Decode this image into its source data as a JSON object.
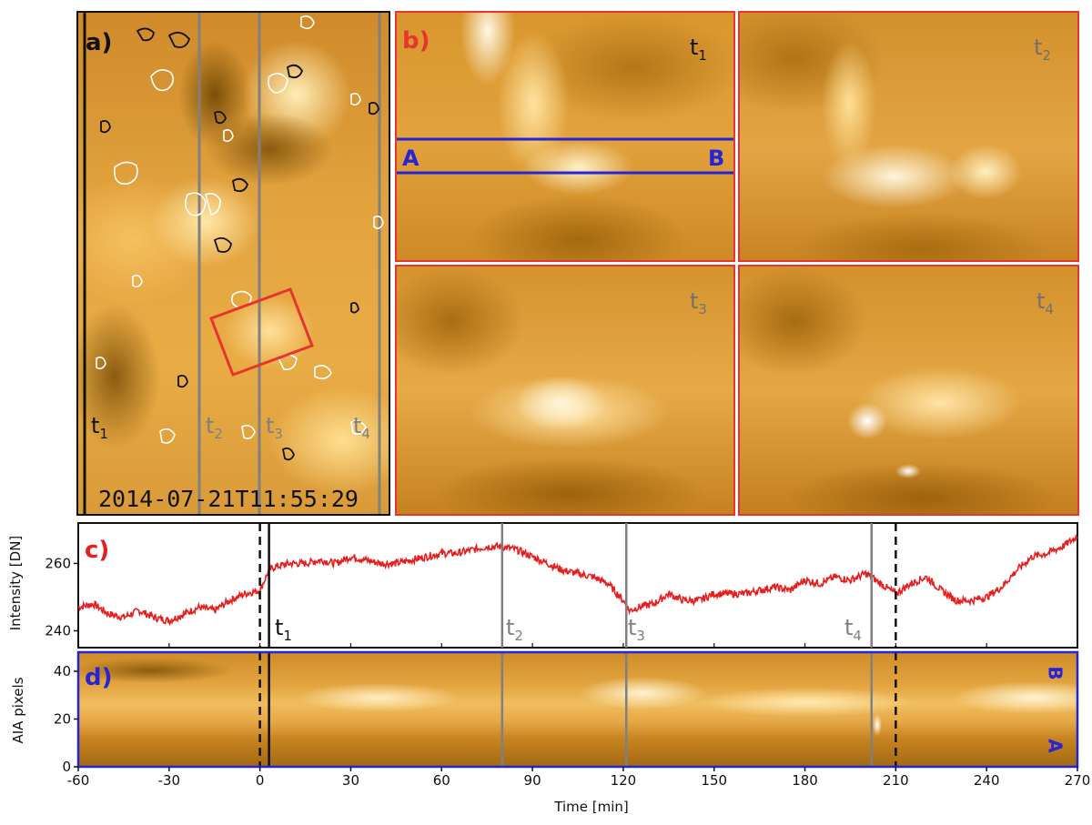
{
  "colors": {
    "aia_bright": "#fff6dc",
    "aia_mid": "#e9a33a",
    "aia_dark": "#6b4608",
    "panel_b_border": "#e8342e",
    "panel_d_border": "#2424d8",
    "curve": "#e81e1e",
    "marker_black": "#111111",
    "marker_gray": "#808080"
  },
  "panel_a": {
    "label": "a)",
    "timestamp": "2014-07-21T11:55:29",
    "time_labels": [
      {
        "base": "t",
        "sub": "1",
        "color": "#111111"
      },
      {
        "base": "t",
        "sub": "2",
        "color": "#808080"
      },
      {
        "base": "t",
        "sub": "3",
        "color": "#808080"
      },
      {
        "base": "t",
        "sub": "4",
        "color": "#808080"
      }
    ]
  },
  "panel_b": {
    "label": "b)",
    "slit_start": "A",
    "slit_end": "B",
    "subpanels": [
      {
        "base": "t",
        "sub": "1",
        "color": "#111111"
      },
      {
        "base": "t",
        "sub": "2",
        "color": "#707070"
      },
      {
        "base": "t",
        "sub": "3",
        "color": "#707070"
      },
      {
        "base": "t",
        "sub": "4",
        "color": "#707070"
      }
    ]
  },
  "panel_c": {
    "label": "c)",
    "ylabel": "Intensity [DN]",
    "yticks": [
      240,
      260
    ],
    "marker_labels": [
      {
        "base": "t",
        "sub": "1",
        "x": 3,
        "color": "#111111"
      },
      {
        "base": "t",
        "sub": "2",
        "x": 80,
        "color": "#808080"
      },
      {
        "base": "t",
        "sub": "3",
        "x": 121,
        "color": "#808080"
      },
      {
        "base": "t",
        "sub": "4",
        "x": 202,
        "color": "#808080"
      }
    ]
  },
  "panel_d": {
    "label": "d)",
    "ylabel": "AIA pixels",
    "yticks": [
      0,
      20,
      40
    ],
    "end_top": "B",
    "end_bottom": "A"
  },
  "axes": {
    "xlabel": "Time [min]",
    "xticks": [
      -60,
      -30,
      0,
      30,
      60,
      90,
      120,
      150,
      180,
      210,
      240,
      270
    ]
  },
  "chart_data": {
    "type": "line",
    "title": "",
    "xlabel": "Time [min]",
    "ylabel": "Intensity [DN]",
    "xlim": [
      -60,
      270
    ],
    "ylim": [
      235,
      272
    ],
    "series": [
      {
        "x": [
          -60,
          -55,
          -50,
          -45,
          -40,
          -35,
          -30,
          -25,
          -20,
          -15,
          -10,
          -5,
          0,
          1,
          3,
          5,
          10,
          15,
          20,
          25,
          30,
          35,
          40,
          45,
          50,
          55,
          60,
          65,
          70,
          75,
          80,
          85,
          90,
          95,
          100,
          105,
          110,
          115,
          120,
          122,
          125,
          130,
          135,
          140,
          145,
          150,
          155,
          160,
          165,
          170,
          175,
          180,
          185,
          190,
          195,
          200,
          202,
          205,
          210,
          215,
          220,
          225,
          230,
          235,
          240,
          245,
          250,
          255,
          260,
          265,
          270
        ],
        "y": [
          247,
          248,
          245,
          244,
          246,
          244,
          243,
          245,
          247,
          246,
          249,
          251,
          252,
          254,
          258,
          259,
          260,
          260,
          261,
          260,
          262,
          261,
          260,
          260,
          261,
          262,
          263,
          263,
          264,
          265,
          265,
          264,
          262,
          260,
          258,
          257,
          256,
          254,
          249,
          246,
          247,
          248,
          251,
          249,
          249,
          251,
          251,
          251,
          252,
          253,
          252,
          255,
          254,
          256,
          255,
          257,
          256,
          254,
          251,
          254,
          256,
          252,
          249,
          249,
          250,
          253,
          258,
          262,
          263,
          265,
          268
        ]
      }
    ],
    "vlines": [
      {
        "x": 0,
        "style": "dashed",
        "color": "#111111"
      },
      {
        "x": 3,
        "style": "solid",
        "color": "#111111"
      },
      {
        "x": 80,
        "style": "solid",
        "color": "#808080"
      },
      {
        "x": 121,
        "style": "solid",
        "color": "#808080"
      },
      {
        "x": 202,
        "style": "solid",
        "color": "#808080"
      },
      {
        "x": 210,
        "style": "dashed",
        "color": "#111111"
      }
    ],
    "grid": false
  }
}
